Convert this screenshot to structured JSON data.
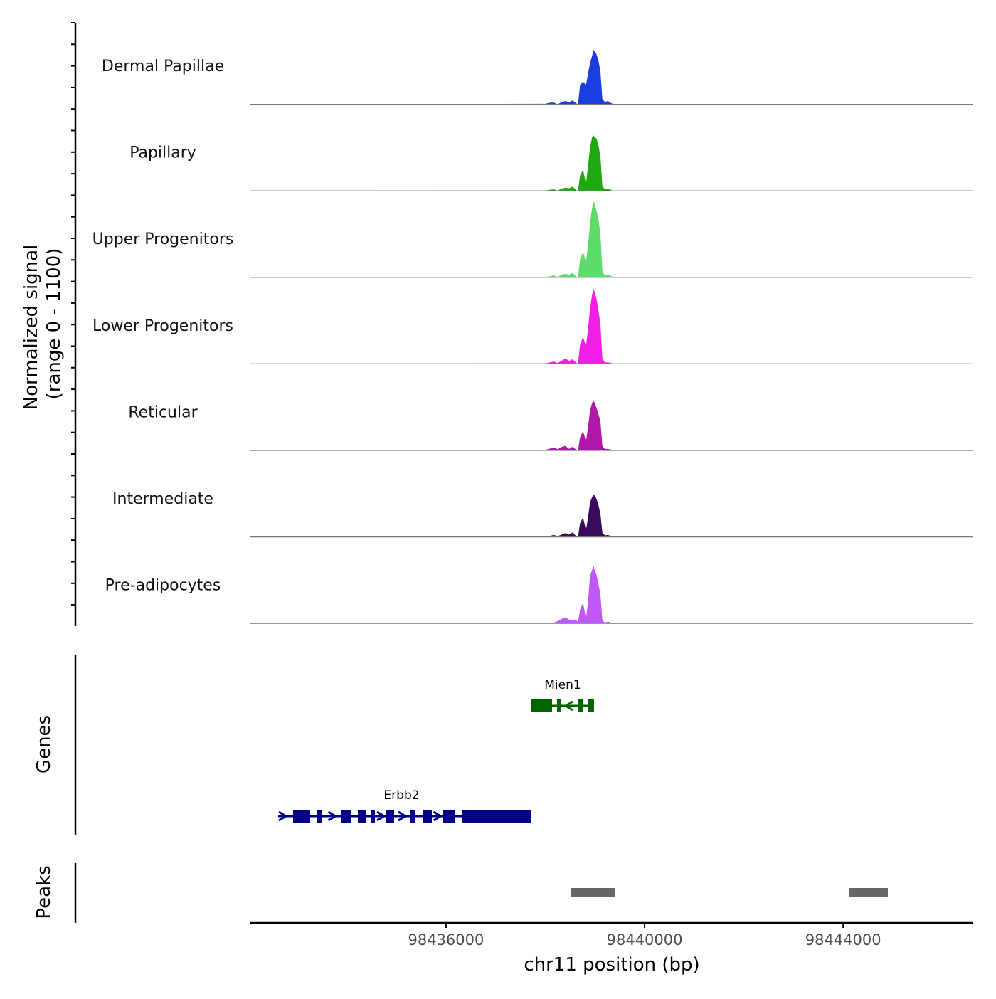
{
  "chart_data": {
    "type": "area",
    "title": "",
    "ylabel": "Normalized signal",
    "ylabel_range": "(range 0 - 1100)",
    "xlabel": "chr11 position (bp)",
    "ylim": [
      0,
      1100
    ],
    "xlim": [
      98432060,
      98446620
    ],
    "x_ticks": [
      98436000,
      98440000,
      98444000
    ],
    "x_tick_labels": [
      "98436000",
      "98440000",
      "98444000"
    ],
    "profile_x": [
      98438000,
      98438100,
      98438170,
      98438250,
      98438330,
      98438400,
      98438480,
      98438550,
      98438620,
      98438660,
      98438700,
      98438760,
      98438820,
      98438860,
      98438900,
      98438940,
      98438970,
      98439000,
      98439030,
      98439070,
      98439110,
      98439150,
      98439200,
      98439260,
      98439330,
      98439400
    ],
    "series": [
      {
        "name": "Dermal Papillae",
        "color": "#1a3ddc",
        "values": [
          7,
          22,
          22,
          0,
          29,
          43,
          29,
          50,
          14,
          0,
          250,
          300,
          250,
          400,
          540,
          630,
          720,
          685,
          660,
          575,
          430,
          70,
          30,
          43,
          14,
          0
        ]
      },
      {
        "name": "Papillary",
        "color": "#1fa80f",
        "values": [
          5,
          15,
          20,
          5,
          30,
          40,
          35,
          55,
          10,
          0,
          200,
          280,
          90,
          320,
          560,
          700,
          730,
          700,
          690,
          600,
          450,
          60,
          20,
          30,
          10,
          0
        ]
      },
      {
        "name": "Upper Progenitors",
        "color": "#5cdc6a",
        "values": [
          5,
          15,
          25,
          5,
          35,
          45,
          35,
          60,
          10,
          0,
          240,
          335,
          200,
          420,
          700,
          900,
          1000,
          940,
          880,
          760,
          560,
          80,
          25,
          40,
          15,
          0
        ]
      },
      {
        "name": "Lower Progenitors",
        "color": "#f01fe8",
        "values": [
          5,
          20,
          30,
          10,
          40,
          70,
          40,
          60,
          15,
          0,
          250,
          355,
          230,
          450,
          720,
          900,
          990,
          930,
          860,
          700,
          520,
          70,
          20,
          20,
          10,
          0
        ]
      },
      {
        "name": "Reticular",
        "color": "#b118aa",
        "values": [
          5,
          25,
          40,
          15,
          45,
          60,
          20,
          50,
          10,
          0,
          170,
          255,
          120,
          300,
          520,
          620,
          650,
          620,
          560,
          480,
          380,
          60,
          20,
          20,
          10,
          0
        ]
      },
      {
        "name": "Intermediate",
        "color": "#3a0a5e",
        "values": [
          5,
          15,
          25,
          10,
          30,
          50,
          30,
          60,
          10,
          0,
          180,
          255,
          90,
          250,
          450,
          520,
          555,
          540,
          500,
          420,
          300,
          60,
          20,
          25,
          10,
          0
        ]
      },
      {
        "name": "Pre-adipocytes",
        "color": "#bf58f6",
        "values": [
          0,
          5,
          10,
          30,
          60,
          80,
          50,
          40,
          45,
          20,
          180,
          275,
          60,
          280,
          620,
          700,
          760,
          690,
          640,
          520,
          380,
          40,
          10,
          25,
          10,
          0
        ]
      }
    ],
    "genes_label": "Genes",
    "genes": [
      {
        "name": "Mien1",
        "strand": "-",
        "color": "#006400",
        "start": 98437720,
        "end": 98438981,
        "exons": [
          [
            98437720,
            98438136
          ],
          [
            98438236,
            98438308
          ],
          [
            98438652,
            98438767
          ],
          [
            98438853,
            98438981
          ]
        ]
      },
      {
        "name": "Erbb2",
        "strand": "+",
        "color": "#00008b",
        "start": 98432648,
        "end": 98437706,
        "exons": [
          [
            98432920,
            98433264
          ],
          [
            98433407,
            98433507
          ],
          [
            98433894,
            98434080
          ],
          [
            98434224,
            98434381
          ],
          [
            98434496,
            98434568
          ],
          [
            98434797,
            98434955
          ],
          [
            98435270,
            98435385
          ],
          [
            98435528,
            98435714
          ],
          [
            98435929,
            98436187
          ],
          [
            98436316,
            98437706
          ]
        ]
      }
    ],
    "peaks_label": "Peaks",
    "peaks": [
      [
        98438509,
        98439398
      ],
      [
        98444112,
        98444900
      ]
    ],
    "peak_color": "#666666"
  }
}
